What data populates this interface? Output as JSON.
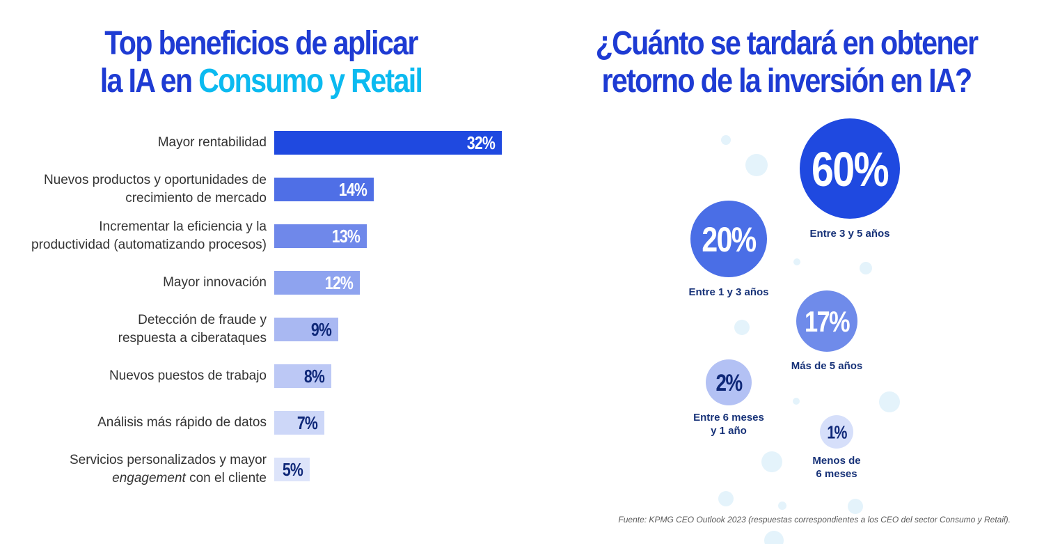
{
  "left_title": {
    "line1": "Top beneficios de aplicar",
    "line2_prefix": "la IA en ",
    "line2_accent": "Consumo y Retail"
  },
  "right_title": {
    "line1": "¿Cuánto se tardará en obtener",
    "line2": "retorno de la inversión en IA?"
  },
  "colors": {
    "title_blue": "#1e3bd3",
    "accent_cyan": "#0bbaf0",
    "dark_navy": "#0f2878",
    "decor_bubble": "#e4f3fb"
  },
  "chart_data": [
    {
      "type": "bar",
      "orientation": "horizontal",
      "title": "Top beneficios de aplicar la IA en Consumo y Retail",
      "categories": [
        [
          "Mayor rentabilidad"
        ],
        [
          "Nuevos productos y oportunidades de",
          "crecimiento de mercado"
        ],
        [
          "Incrementar la eficiencia y la",
          "productividad (automatizando procesos)"
        ],
        [
          "Mayor innovación"
        ],
        [
          "Detección de fraude y",
          "respuesta a ciberataques"
        ],
        [
          "Nuevos puestos de trabajo"
        ],
        [
          "Análisis más rápido de datos"
        ],
        [
          "Servicios personalizados y mayor",
          "engagement con el cliente"
        ]
      ],
      "values": [
        32,
        14,
        13,
        12,
        9,
        8,
        7,
        5
      ],
      "value_labels": [
        "32%",
        "14%",
        "13%",
        "12%",
        "9%",
        "8%",
        "7%",
        "5%"
      ],
      "bar_colors": [
        "#1f49e0",
        "#4f6fe6",
        "#6f88ea",
        "#8ea3ef",
        "#a9b8f2",
        "#bcc8f5",
        "#cdd7f8",
        "#dde4fa"
      ],
      "label_colors": [
        "#ffffff",
        "#ffffff",
        "#ffffff",
        "#ffffff",
        "#0f2878",
        "#0f2878",
        "#0f2878",
        "#0f2878"
      ],
      "italic_word": "engagement",
      "xlim": [
        0,
        32
      ]
    },
    {
      "type": "bubble",
      "title": "¿Cuánto se tardará en obtener retorno de la inversión en IA?",
      "categories": [
        "Entre 3 y 5 años",
        "Entre 1 y 3 años",
        "Más de 5 años",
        "Entre 6 meses y 1 año",
        "Menos de 6 meses"
      ],
      "values": [
        60,
        20,
        17,
        2,
        1
      ],
      "value_labels": [
        "60%",
        "20%",
        "17%",
        "2%",
        "1%"
      ],
      "bubble_colors": [
        "#1f49e0",
        "#4a6ee6",
        "#6f8bea",
        "#b3c1f4",
        "#d6dffa"
      ],
      "value_text_colors": [
        "#ffffff",
        "#ffffff",
        "#ffffff",
        "#0f2878",
        "#0f2878"
      ]
    }
  ],
  "source": "Fuente: KPMG CEO Outlook 2023 (respuestas correspondientes a los CEO del sector Consumo y Retail)."
}
